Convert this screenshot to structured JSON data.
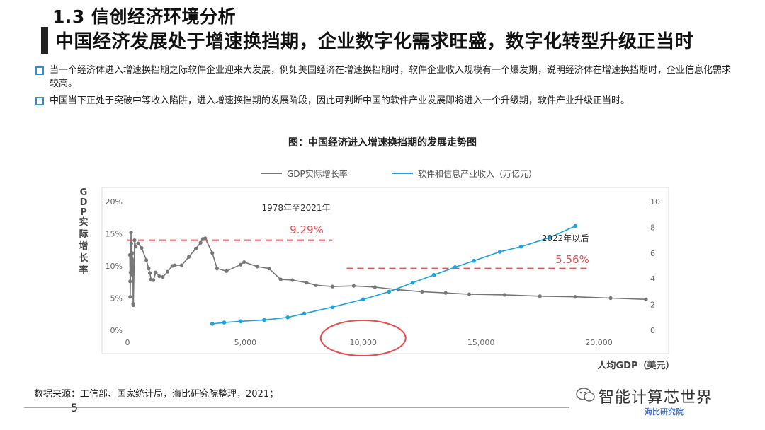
{
  "header": {
    "section": "1.3 信创经济环境分析",
    "headline": "中国经济发展处于增速换挡期，企业数字化需求旺盛，数字化转型升级正当时"
  },
  "bullets": [
    "当一个经济体进入增速换挡期之际软件企业迎来大发展，例如美国经济在增速换挡期时，软件企业收入规模有一个爆发期，说明经济体在增速换挡期时，企业信息化需求较高。",
    "中国当下正处于突破中等收入陷阱，进入增速换挡期的发展阶段，因此可判断中国的软件产业发展即将进入一个升级期，软件产业升级正当时。"
  ],
  "chart_title": "图：中国经济进入增速换挡期的发展走势图",
  "source": "数据来源：工信部、国家统计局，海比研究院整理，2021；",
  "page_number": "5",
  "brand": {
    "name": "智能计算芯世界",
    "logo_text": "海比研究院"
  },
  "colors": {
    "accent": "#2f8fd8",
    "gdp_line": "#777777",
    "software_line": "#1ba3e0",
    "threshold": "#e84c4c"
  },
  "chart_data": {
    "type": "line",
    "title": "",
    "xlabel": "人均GDP（美元）",
    "ylabel": "GDP实际增长率",
    "xlim": [
      0,
      22000
    ],
    "ylim_left": [
      0,
      20
    ],
    "ylim_right": [
      0,
      10
    ],
    "x_ticks": [
      "0",
      "5,000",
      "10,000",
      "15,000",
      "20,000"
    ],
    "y_left_ticks": [
      "0%",
      "5%",
      "10%",
      "15%",
      "20%"
    ],
    "y_right_ticks": [
      "0",
      "2",
      "4",
      "6",
      "8",
      "10"
    ],
    "legend_position": "top",
    "grid": false,
    "series": [
      {
        "name": "GDP实际增长率",
        "axis": "left",
        "points": [
          [
            100,
            11.7
          ],
          [
            110,
            7.6
          ],
          [
            115,
            5.2
          ],
          [
            130,
            9.0
          ],
          [
            140,
            11.7
          ],
          [
            150,
            15.2
          ],
          [
            160,
            13.5
          ],
          [
            170,
            11.2
          ],
          [
            180,
            9.1
          ],
          [
            190,
            10.9
          ],
          [
            200,
            12.0
          ],
          [
            210,
            9.2
          ],
          [
            220,
            8.6
          ],
          [
            230,
            10.9
          ],
          [
            240,
            4.1
          ],
          [
            250,
            3.9
          ],
          [
            300,
            14.0
          ],
          [
            350,
            13.0
          ],
          [
            450,
            13.5
          ],
          [
            600,
            12.8
          ],
          [
            800,
            10.9
          ],
          [
            900,
            9.6
          ],
          [
            950,
            8.9
          ],
          [
            1000,
            7.9
          ],
          [
            1100,
            7.8
          ],
          [
            1200,
            9.0
          ],
          [
            1350,
            8.4
          ],
          [
            1500,
            8.3
          ],
          [
            1700,
            9.1
          ],
          [
            1900,
            10.0
          ],
          [
            2000,
            10.1
          ],
          [
            2300,
            10.1
          ],
          [
            2600,
            11.4
          ],
          [
            2900,
            12.7
          ],
          [
            3100,
            13.6
          ],
          [
            3200,
            14.2
          ],
          [
            3300,
            14.3
          ],
          [
            3600,
            12.0
          ],
          [
            3800,
            9.6
          ],
          [
            4200,
            9.2
          ],
          [
            4800,
            10.2
          ],
          [
            4950,
            10.6
          ],
          [
            5500,
            9.9
          ],
          [
            6000,
            9.6
          ],
          [
            6500,
            7.9
          ],
          [
            7000,
            7.8
          ],
          [
            7600,
            7.4
          ],
          [
            8000,
            7.0
          ],
          [
            8700,
            6.8
          ],
          [
            9600,
            6.9
          ],
          [
            10500,
            6.7
          ],
          [
            11500,
            6.3
          ],
          [
            12500,
            6.0
          ],
          [
            13500,
            5.8
          ],
          [
            14500,
            5.6
          ],
          [
            16000,
            5.5
          ],
          [
            17500,
            5.3
          ],
          [
            19000,
            5.2
          ],
          [
            20500,
            5.0
          ],
          [
            22000,
            4.8
          ]
        ]
      },
      {
        "name": "软件和信息产业收入（万亿元）",
        "axis": "right",
        "points": [
          [
            3600,
            0.5
          ],
          [
            4100,
            0.6
          ],
          [
            4800,
            0.7
          ],
          [
            5800,
            0.8
          ],
          [
            6800,
            1.0
          ],
          [
            7500,
            1.3
          ],
          [
            8700,
            1.8
          ],
          [
            10000,
            2.4
          ],
          [
            11100,
            3.0
          ],
          [
            12100,
            3.7
          ],
          [
            13000,
            4.3
          ],
          [
            13900,
            4.9
          ],
          [
            14700,
            5.4
          ],
          [
            15800,
            6.1
          ],
          [
            16700,
            6.5
          ],
          [
            17900,
            7.2
          ],
          [
            19000,
            8.1
          ]
        ]
      }
    ],
    "annotations": {
      "period_early": "1978年至2021年",
      "period_late": "2022年以后",
      "threshold_high": {
        "label": "9.29%",
        "value": 14,
        "x_range": [
          0,
          8700
        ]
      },
      "threshold_low": {
        "label": "5.56%",
        "value": 9.6,
        "x_range": [
          9300,
          19500
        ]
      },
      "highlight_x": 10000
    }
  }
}
